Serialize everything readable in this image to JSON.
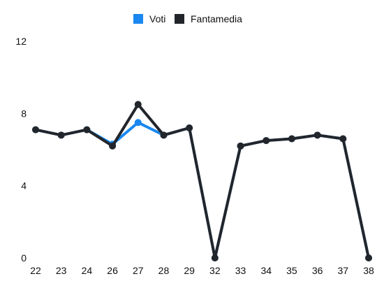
{
  "chart_data": {
    "type": "line",
    "categories": [
      "22",
      "23",
      "24",
      "26",
      "27",
      "28",
      "29",
      "32",
      "33",
      "34",
      "35",
      "36",
      "37",
      "38"
    ],
    "series": [
      {
        "name": "Voti",
        "color": "#1a88f0",
        "values": [
          7.1,
          6.8,
          7.1,
          6.3,
          7.5,
          6.8,
          7.2,
          0,
          6.2,
          6.5,
          6.6,
          6.8,
          6.6,
          0
        ]
      },
      {
        "name": "Fantamedia",
        "color": "#22262b",
        "values": [
          7.1,
          6.8,
          7.1,
          6.2,
          8.5,
          6.8,
          7.2,
          0,
          6.2,
          6.5,
          6.6,
          6.8,
          6.6,
          0
        ]
      }
    ],
    "y_ticks": [
      "0",
      "4",
      "8",
      "12"
    ],
    "ylim": [
      0,
      12
    ],
    "legend_position": "top-center",
    "grid": false
  }
}
